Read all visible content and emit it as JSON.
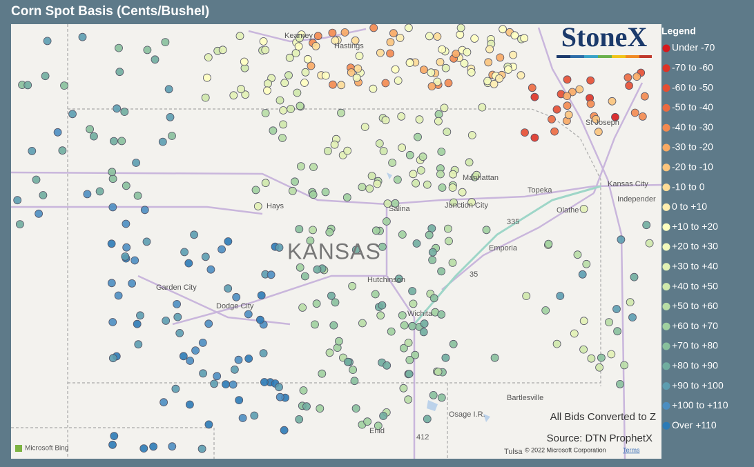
{
  "header": {
    "title": "Corn Spot Basis (Cents/Bushel)"
  },
  "logo": "StoneX",
  "legend": {
    "title": "Legend",
    "items": [
      {
        "label": "Under -70",
        "color": "#d7191c"
      },
      {
        "label": "-70 to -60",
        "color": "#de3326"
      },
      {
        "label": "-60 to -50",
        "color": "#e54e32"
      },
      {
        "label": "-50 to -40",
        "color": "#ec6a40"
      },
      {
        "label": "-40 to -30",
        "color": "#f3894f"
      },
      {
        "label": "-30 to -20",
        "color": "#f8a963"
      },
      {
        "label": "-20 to -10",
        "color": "#fbc47c"
      },
      {
        "label": "-10 to 0",
        "color": "#fddb96"
      },
      {
        "label": "0 to +10",
        "color": "#feedaf"
      },
      {
        "label": "+10 to +20",
        "color": "#ffffc0"
      },
      {
        "label": "+20 to +30",
        "color": "#f3f9bc"
      },
      {
        "label": "+30 to +40",
        "color": "#e2f1b4"
      },
      {
        "label": "+40 to +50",
        "color": "#cfe8ab"
      },
      {
        "label": "+50 to +60",
        "color": "#b8dda5"
      },
      {
        "label": "+60 to +70",
        "color": "#a0d09f"
      },
      {
        "label": "+70 to +80",
        "color": "#88c09c"
      },
      {
        "label": "+80 to +90",
        "color": "#70ad9f"
      },
      {
        "label": "+90 to +100",
        "color": "#5c9db0"
      },
      {
        "label": "+100 to +110",
        "color": "#4c8ec1"
      },
      {
        "label": "Over +110",
        "color": "#2c7bb6"
      }
    ]
  },
  "places": [
    "Kearney",
    "Hastings",
    "St Joseph",
    "Manhattan",
    "Kansas City",
    "Independer",
    "Topeka",
    "Olathe",
    "Hays",
    "Salina",
    "Junction City",
    "Emporia",
    "KANSAS",
    "Hutchinson",
    "Garden City",
    "Dodge City",
    "Wichita",
    "Bartlesville",
    "Osage I.R.",
    "Enid",
    "Tulsa",
    "335",
    "35",
    "412"
  ],
  "notes": {
    "conversion": "All Bids Converted to Z",
    "source": "Source: DTN ProphetX"
  },
  "attribution": {
    "bing": "Microsoft Bing",
    "copyright": "© 2022 Microsoft Corporation",
    "terms": "Terms"
  }
}
